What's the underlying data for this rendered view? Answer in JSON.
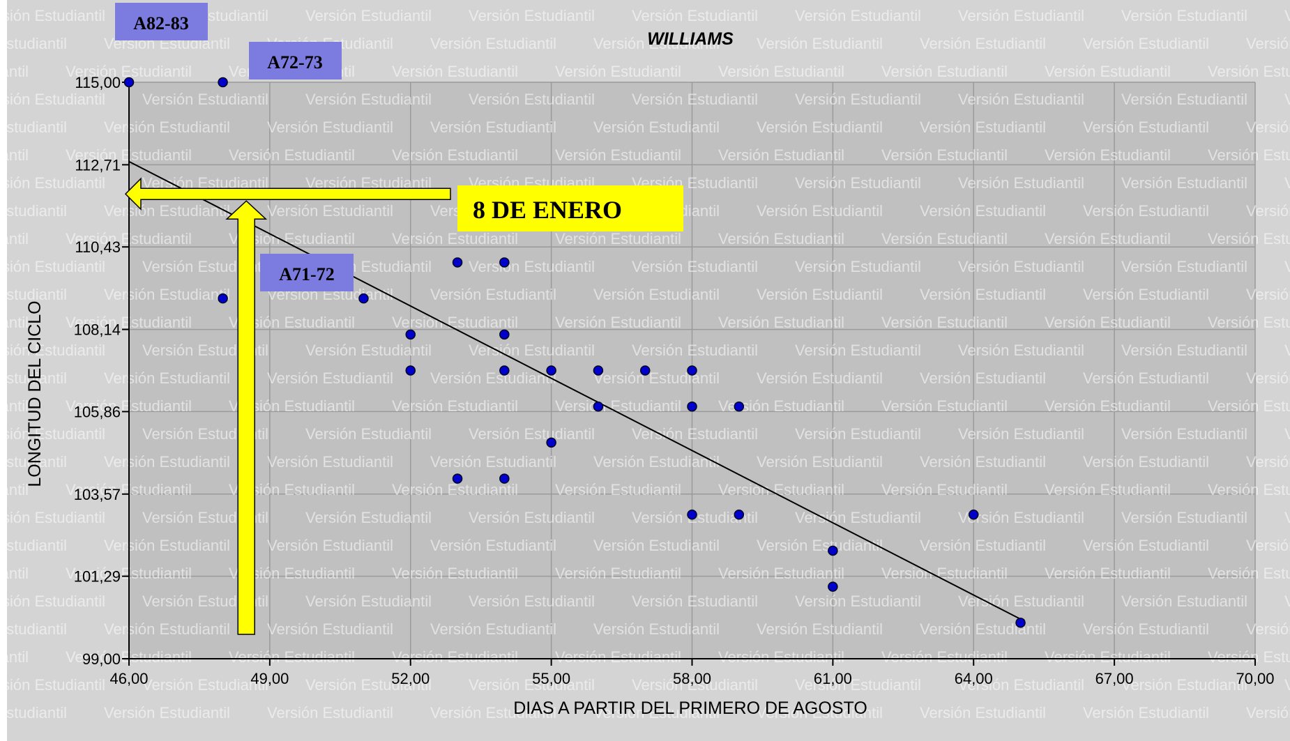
{
  "chart_data": {
    "type": "scatter",
    "title": "WILLIAMS",
    "xlabel": "DIAS A PARTIR DEL PRIMERO DE AGOSTO",
    "ylabel": "LONGITUD DEL CICLO",
    "xlim": [
      46,
      70
    ],
    "ylim": [
      99,
      115
    ],
    "x_ticks": [
      "46,00",
      "49,00",
      "52,00",
      "55,00",
      "58,00",
      "61,00",
      "64,00",
      "67,00",
      "70,00"
    ],
    "y_ticks": [
      "99,00",
      "101,29",
      "103,57",
      "105,86",
      "108,14",
      "110,43",
      "112,71",
      "115,00"
    ],
    "x_tick_values": [
      46,
      49,
      52,
      55,
      58,
      61,
      64,
      67,
      70
    ],
    "y_tick_values": [
      99,
      101.29,
      103.57,
      105.86,
      108.14,
      110.43,
      112.71,
      115
    ],
    "grid": true,
    "points": [
      {
        "x": 46,
        "y": 115
      },
      {
        "x": 48,
        "y": 115
      },
      {
        "x": 48,
        "y": 109
      },
      {
        "x": 51,
        "y": 109
      },
      {
        "x": 52,
        "y": 108
      },
      {
        "x": 52,
        "y": 107
      },
      {
        "x": 53,
        "y": 110
      },
      {
        "x": 54,
        "y": 110
      },
      {
        "x": 54,
        "y": 108
      },
      {
        "x": 54,
        "y": 107
      },
      {
        "x": 55,
        "y": 107
      },
      {
        "x": 56,
        "y": 107
      },
      {
        "x": 57,
        "y": 107
      },
      {
        "x": 58,
        "y": 107
      },
      {
        "x": 56,
        "y": 106
      },
      {
        "x": 58,
        "y": 106
      },
      {
        "x": 59,
        "y": 106
      },
      {
        "x": 55,
        "y": 105
      },
      {
        "x": 53,
        "y": 104
      },
      {
        "x": 54,
        "y": 104
      },
      {
        "x": 58,
        "y": 103
      },
      {
        "x": 59,
        "y": 103
      },
      {
        "x": 64,
        "y": 103
      },
      {
        "x": 61,
        "y": 102
      },
      {
        "x": 61,
        "y": 101
      },
      {
        "x": 65,
        "y": 100
      }
    ],
    "trendline": {
      "x": [
        46,
        65
      ],
      "y": [
        112.8,
        100.1
      ]
    },
    "annotations": [
      {
        "text": "A82-83",
        "x": 46,
        "y": 115
      },
      {
        "text": "A72-73",
        "x": 48,
        "y": 115
      },
      {
        "text": "A71-72",
        "x": 48,
        "y": 109
      },
      {
        "text": "8 DE ENERO",
        "arrow_level_y": 111.9,
        "arrow_level_x": 48.5
      }
    ],
    "colors": {
      "plot_background": "#c0c0c0",
      "outer_background": "#d4d4d4",
      "point": "#0000cc",
      "tag_background": "#7b7be0",
      "arrow_fill": "#ffff00",
      "watermark": "#ffffff"
    },
    "watermark_text": "Versión Estudiantil"
  }
}
